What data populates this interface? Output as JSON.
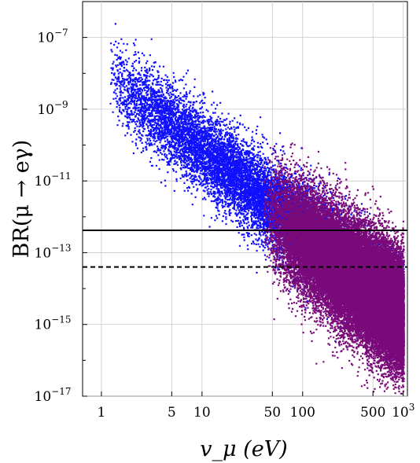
{
  "chart_data": {
    "type": "scatter",
    "title": "",
    "xlabel": "v_μ (eV)",
    "ylabel": "BR(μ → eγ)",
    "x_scale": "log",
    "y_scale": "log",
    "xlim": [
      0.65,
      1100
    ],
    "ylim": [
      1e-17,
      1e-06
    ],
    "grid": true,
    "legend": "none",
    "x_ticks": [
      {
        "value": 1,
        "label": "1"
      },
      {
        "value": 5,
        "label": "5"
      },
      {
        "value": 10,
        "label": "10"
      },
      {
        "value": 50,
        "label": "50"
      },
      {
        "value": 100,
        "label": "100"
      },
      {
        "value": 500,
        "label": "500"
      },
      {
        "value": 1000,
        "label": "10",
        "exponent": "3"
      }
    ],
    "y_ticks": [
      {
        "value": 1e-07,
        "base": "10",
        "exponent": "−7"
      },
      {
        "value": 1e-09,
        "base": "10",
        "exponent": "−9"
      },
      {
        "value": 1e-11,
        "base": "10",
        "exponent": "−11"
      },
      {
        "value": 1e-13,
        "base": "10",
        "exponent": "−13"
      },
      {
        "value": 1e-15,
        "base": "10",
        "exponent": "−15"
      },
      {
        "value": 1e-17,
        "base": "10",
        "exponent": "−17"
      }
    ],
    "reference_lines": [
      {
        "name": "solid",
        "y": 4.2e-13,
        "style": "solid"
      },
      {
        "name": "dashed",
        "y": 4e-14,
        "style": "dashed"
      }
    ],
    "series": [
      {
        "color": "#1010ff",
        "region": {
          "x_range": [
            1.2,
            1000
          ],
          "center_start": -8.1,
          "slope": -2.2,
          "spread": 1.05,
          "density": 16000
        }
      },
      {
        "color": "#7a0a7a",
        "region": {
          "x_range": [
            40,
            1000
          ],
          "center_start": -11.8,
          "slope": -2.1,
          "spread": 1.55,
          "density": 34000
        }
      }
    ]
  }
}
